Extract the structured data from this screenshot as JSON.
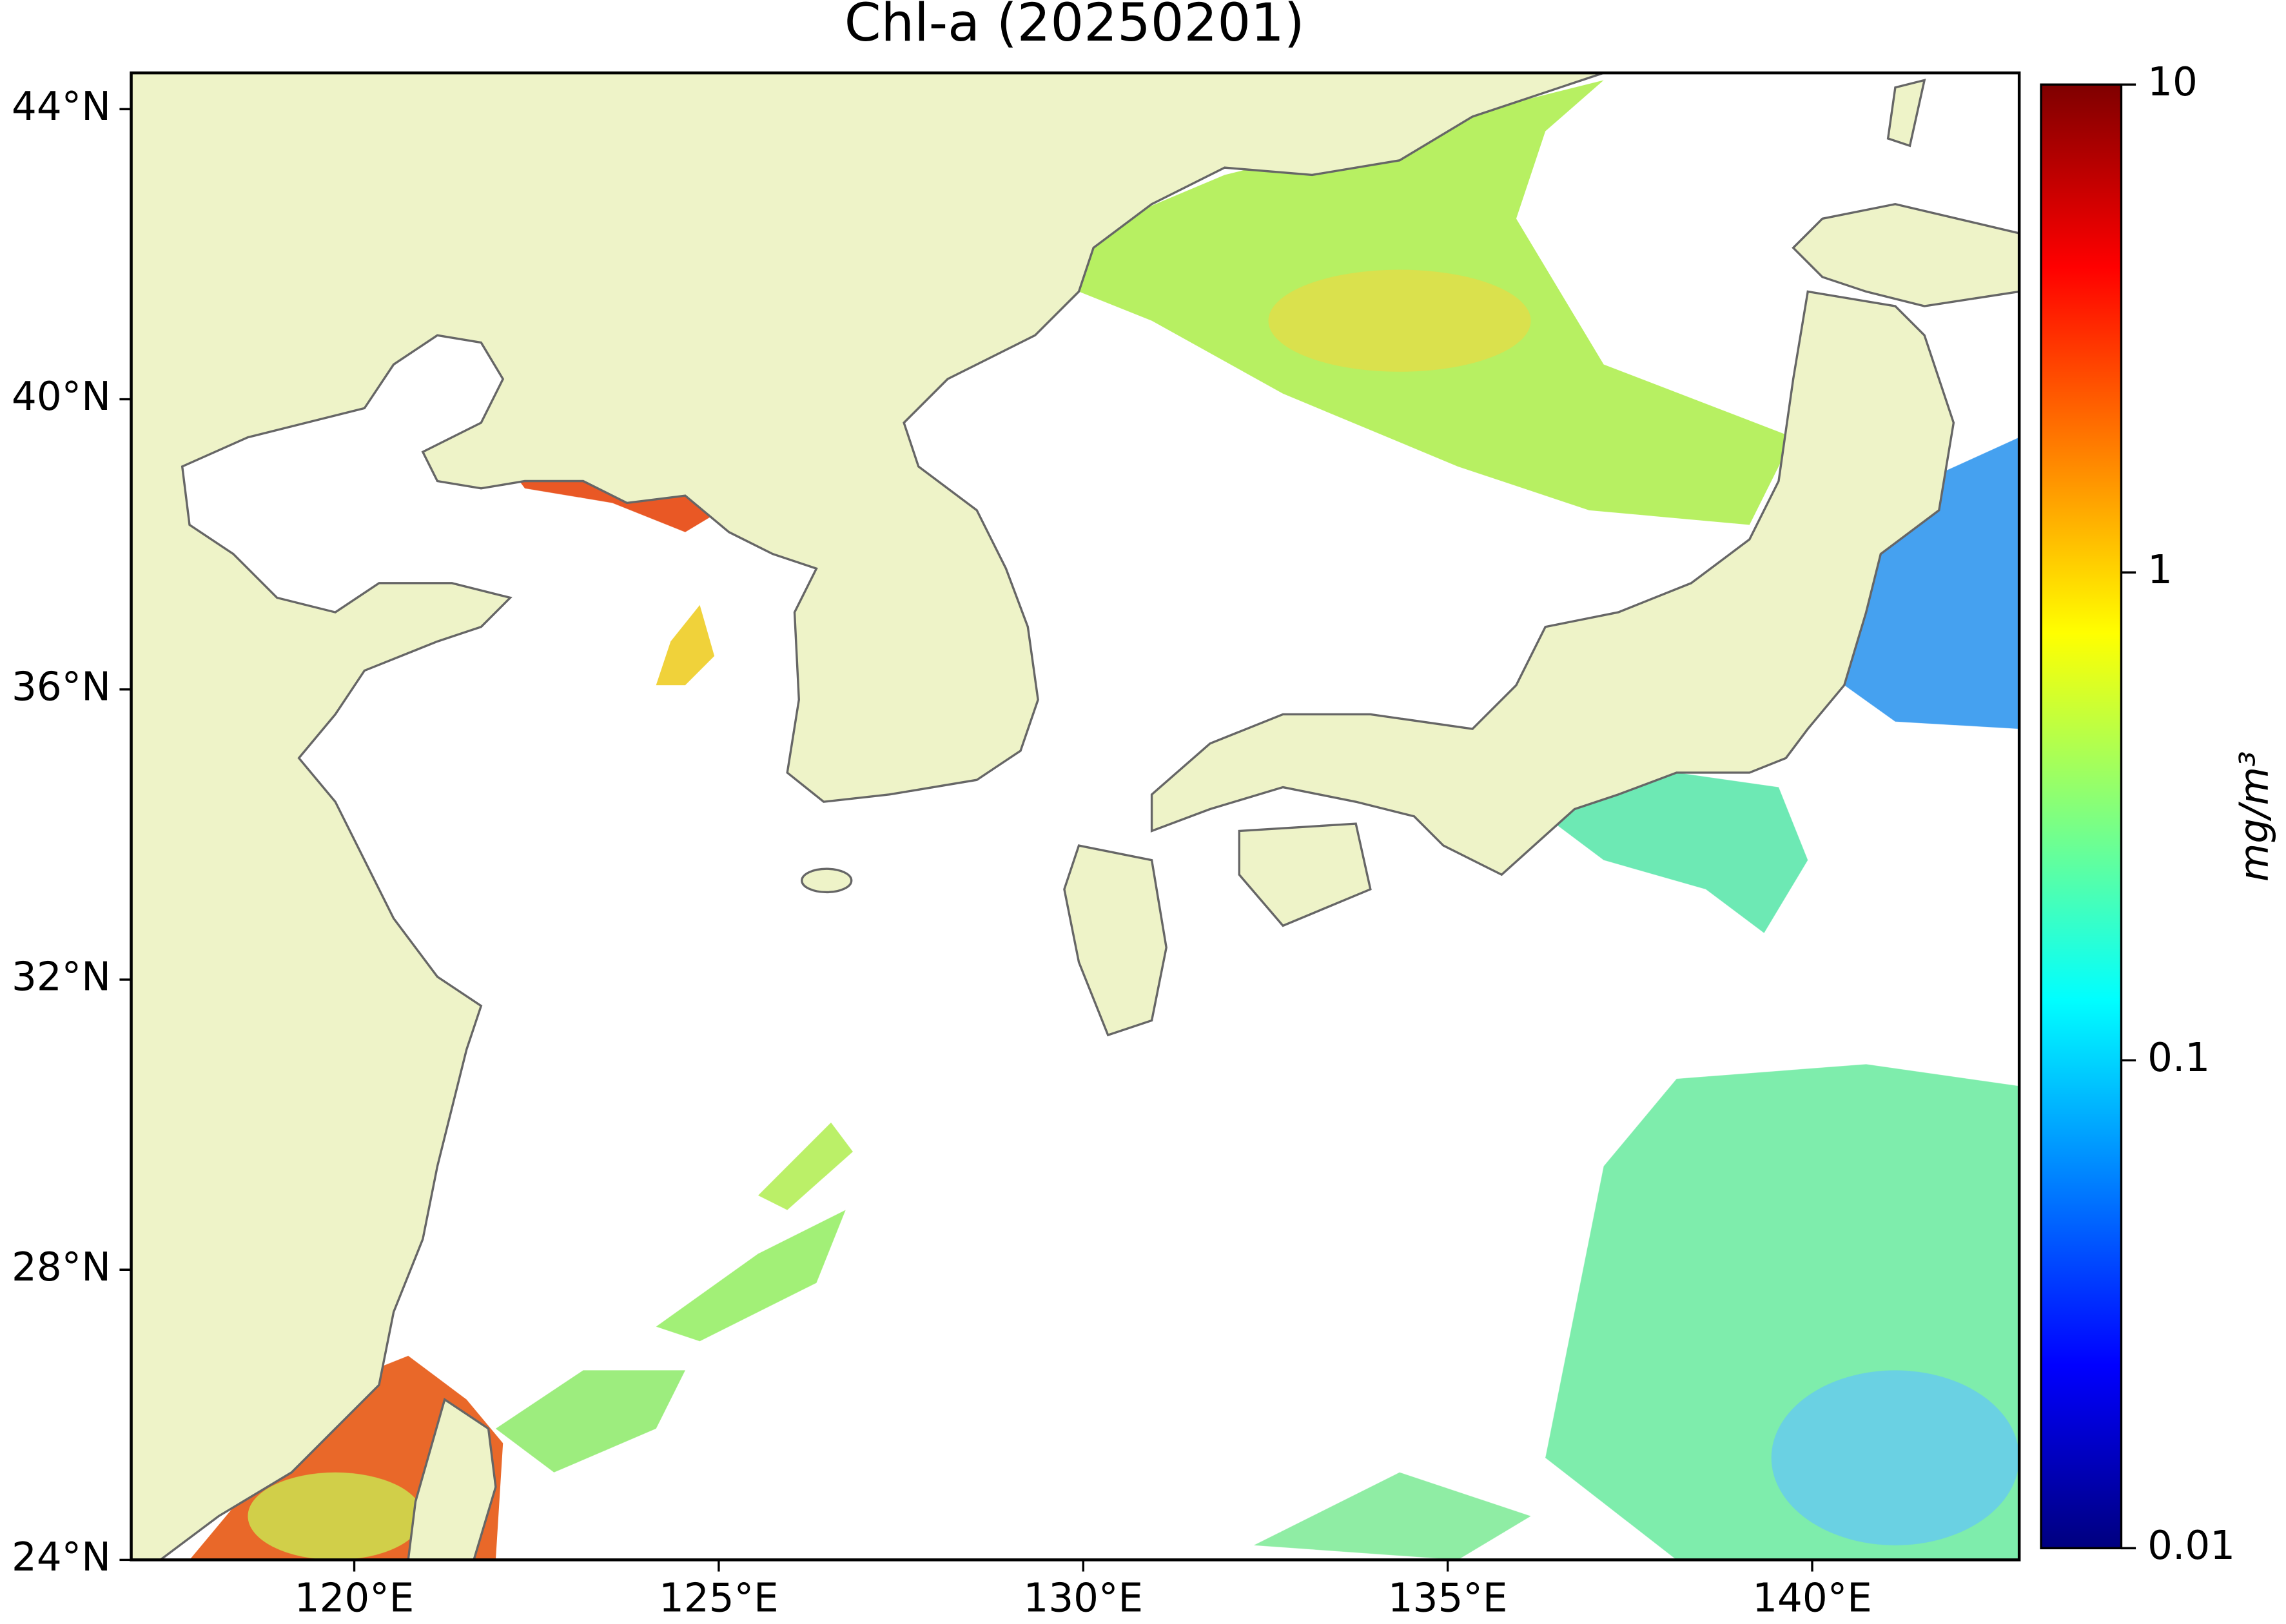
{
  "chart_data": {
    "type": "map",
    "title": "Chl-a (20250201)",
    "xlim": [
      116.94,
      142.84
    ],
    "ylim": [
      24,
      44.5
    ],
    "xticks": [
      {
        "value": 120,
        "label": "120°E"
      },
      {
        "value": 125,
        "label": "125°E"
      },
      {
        "value": 130,
        "label": "130°E"
      },
      {
        "value": 135,
        "label": "135°E"
      },
      {
        "value": 140,
        "label": "140°E"
      }
    ],
    "yticks": [
      {
        "value": 24,
        "label": "24°N"
      },
      {
        "value": 28,
        "label": "28°N"
      },
      {
        "value": 32,
        "label": "32°N"
      },
      {
        "value": 36,
        "label": "36°N"
      },
      {
        "value": 40,
        "label": "40°N"
      },
      {
        "value": 44,
        "label": "44°N"
      }
    ],
    "land_color": "#eef3c8",
    "colorbar": {
      "label": "mg/m³",
      "scale": "log",
      "lim": [
        0.01,
        10
      ],
      "ticks": [
        10,
        1,
        0.1,
        0.01
      ],
      "colormap": "jet"
    }
  }
}
